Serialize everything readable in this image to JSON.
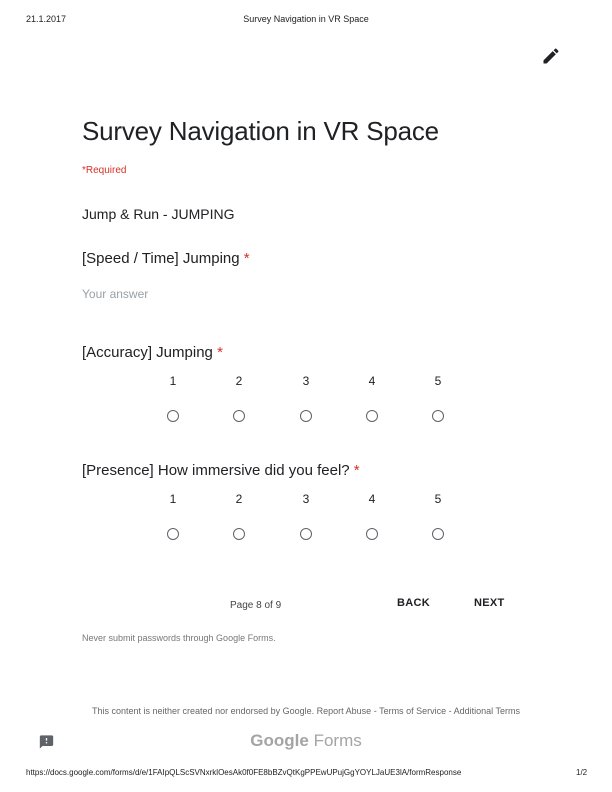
{
  "print_header": {
    "date": "21.1.2017",
    "title": "Survey Navigation in VR Space"
  },
  "form": {
    "title": "Survey Navigation in VR Space",
    "required_note": "*Required",
    "section_title": "Jump & Run - JUMPING",
    "questions": [
      {
        "title": "[Speed / Time] Jumping",
        "required_star": "*",
        "type": "short-answer",
        "placeholder": "Your answer"
      },
      {
        "title": "[Accuracy] Jumping",
        "required_star": "*",
        "type": "linear-scale",
        "scale": [
          "1",
          "2",
          "3",
          "4",
          "5"
        ]
      },
      {
        "title": "[Presence] How immersive did you feel?",
        "required_star": "*",
        "type": "linear-scale",
        "scale": [
          "1",
          "2",
          "3",
          "4",
          "5"
        ]
      }
    ]
  },
  "navigation": {
    "page_indicator": "Page 8 of 9",
    "back_label": "BACK",
    "next_label": "NEXT"
  },
  "password_warning": "Never submit passwords through Google Forms.",
  "disclaimer": {
    "text": "This content is neither created nor endorsed by Google.",
    "report_abuse": "Report Abuse",
    "sep1": "-",
    "terms": "Terms of Service",
    "sep2": "-",
    "additional_terms": "Additional Terms"
  },
  "brand": {
    "part1": "Google",
    "part2": "Forms"
  },
  "print_footer": {
    "url": "https://docs.google.com/forms/d/e/1FAIpQLScSVNxrklOesAk0f0FE8bBZvQtKgPPEwUPujGgYOYLJaUE3lA/formResponse",
    "page": "1/2"
  },
  "icons": {
    "edit": "pencil-icon",
    "feedback": "feedback-icon"
  },
  "colors": {
    "required": "#d93025",
    "text": "#202124",
    "placeholder": "#9aa0a6"
  }
}
